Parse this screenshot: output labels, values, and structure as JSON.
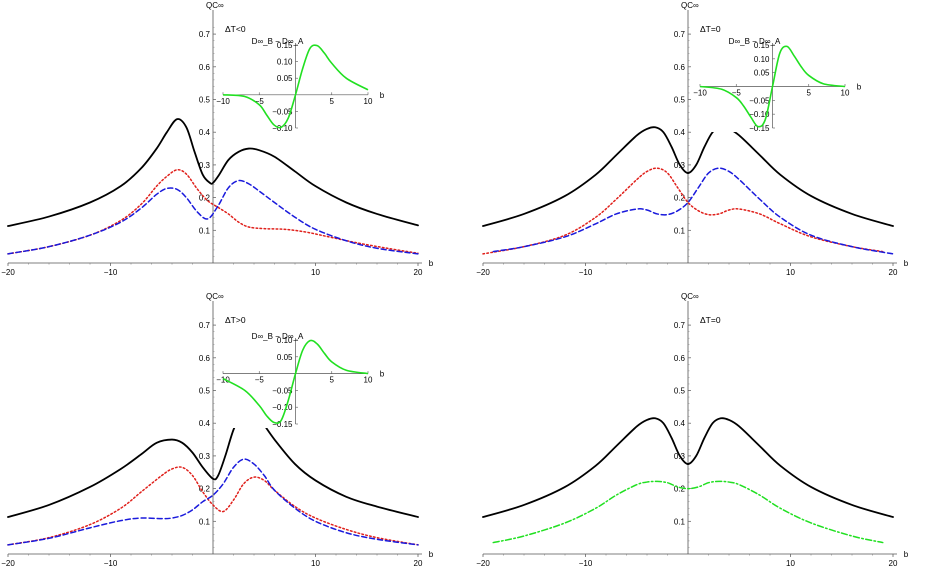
{
  "chart_data": [
    {
      "type": "line",
      "title": "",
      "xlabel": "b",
      "ylabel": "QC∞",
      "annotation": "ΔT<0",
      "xlim": [
        -20,
        20
      ],
      "ylim": [
        0,
        0.75
      ],
      "xticks": [
        -20,
        -10,
        10,
        20
      ],
      "xtick_labels": [
        "−20",
        "−10",
        "10",
        "20"
      ],
      "yticks": [
        0.1,
        0.2,
        0.3,
        0.4,
        0.5,
        0.6,
        0.7
      ],
      "series": [
        {
          "name": "total",
          "style": "solid",
          "color": "#000000",
          "x": [
            -20,
            -16,
            -12,
            -9,
            -7,
            -5.5,
            -4.5,
            -3.5,
            -2.6,
            -1.8,
            -1,
            -0.3,
            0,
            0.6,
            1.5,
            2.5,
            3.5,
            4.5,
            6,
            8,
            10,
            13,
            16,
            20
          ],
          "y": [
            0.113,
            0.142,
            0.185,
            0.235,
            0.29,
            0.35,
            0.4,
            0.44,
            0.415,
            0.34,
            0.27,
            0.245,
            0.245,
            0.27,
            0.315,
            0.34,
            0.35,
            0.345,
            0.325,
            0.28,
            0.235,
            0.185,
            0.15,
            0.115
          ]
        },
        {
          "name": "red",
          "style": "dotted",
          "color": "#e0201b",
          "x": [
            -20,
            -16,
            -12,
            -9,
            -7,
            -5.5,
            -4.5,
            -3.5,
            -2.6,
            -1.5,
            -0.5,
            0.5,
            1.5,
            2.5,
            3.5,
            5,
            7,
            9,
            11,
            14,
            17,
            20
          ],
          "y": [
            0.028,
            0.05,
            0.085,
            0.13,
            0.18,
            0.235,
            0.265,
            0.285,
            0.272,
            0.225,
            0.19,
            0.17,
            0.15,
            0.125,
            0.11,
            0.105,
            0.103,
            0.095,
            0.082,
            0.062,
            0.045,
            0.03
          ]
        },
        {
          "name": "blue",
          "style": "dashed",
          "color": "#1a1adc",
          "x": [
            -20,
            -16,
            -12,
            -9,
            -7,
            -5.5,
            -4.5,
            -3.5,
            -2.6,
            -1.5,
            -0.5,
            0.5,
            1.5,
            2.5,
            3.5,
            4.5,
            6,
            8,
            10,
            13,
            16,
            20
          ],
          "y": [
            0.028,
            0.05,
            0.085,
            0.125,
            0.168,
            0.21,
            0.228,
            0.225,
            0.2,
            0.155,
            0.135,
            0.175,
            0.23,
            0.252,
            0.242,
            0.22,
            0.185,
            0.14,
            0.103,
            0.068,
            0.045,
            0.028
          ]
        }
      ],
      "inset": {
        "label": "D∞_B − D∞_A",
        "xlim": [
          -10,
          10
        ],
        "ylim": [
          -0.1,
          0.15
        ],
        "xticks": [
          -10,
          -5,
          5,
          10
        ],
        "xtick_labels": [
          "−10",
          "−5",
          "5",
          "10"
        ],
        "yticks": [
          -0.1,
          -0.05,
          0.05,
          0.1,
          0.15
        ],
        "ytick_labels": [
          "−0.10",
          "−0.05",
          "0.05",
          "0.10",
          "0.15"
        ],
        "xlabel": "b",
        "x": [
          -10,
          -7,
          -5,
          -4,
          -3,
          -2,
          -1,
          0,
          1,
          2,
          3,
          4,
          5,
          7,
          10
        ],
        "y": [
          0,
          -0.005,
          -0.03,
          -0.06,
          -0.09,
          -0.098,
          -0.07,
          0,
          0.08,
          0.14,
          0.148,
          0.125,
          0.095,
          0.05,
          0.015
        ],
        "color": "#21e021"
      }
    },
    {
      "type": "line",
      "title": "",
      "xlabel": "b",
      "ylabel": "QC∞",
      "annotation": "ΔT=0",
      "xlim": [
        -20,
        20
      ],
      "ylim": [
        0,
        0.75
      ],
      "xticks": [
        -20,
        -10,
        10,
        20
      ],
      "xtick_labels": [
        "−20",
        "−10",
        "10",
        "20"
      ],
      "yticks": [
        0.1,
        0.2,
        0.3,
        0.4,
        0.5,
        0.6,
        0.7
      ],
      "series": [
        {
          "name": "total",
          "style": "solid",
          "color": "#000000",
          "x": [
            -20,
            -16,
            -12,
            -9,
            -7,
            -5,
            -4,
            -3.2,
            -2.4,
            -1.6,
            -0.8,
            0,
            0.8,
            1.6,
            2.4,
            3.2,
            4,
            5,
            7,
            9,
            12,
            16,
            20
          ],
          "y": [
            0.113,
            0.15,
            0.205,
            0.27,
            0.33,
            0.39,
            0.41,
            0.415,
            0.4,
            0.355,
            0.3,
            0.275,
            0.3,
            0.355,
            0.4,
            0.415,
            0.41,
            0.39,
            0.33,
            0.27,
            0.205,
            0.15,
            0.113
          ]
        },
        {
          "name": "red",
          "style": "dotted",
          "color": "#e0201b",
          "x": [
            -20,
            -16,
            -12,
            -9,
            -7,
            -5,
            -4,
            -3,
            -2,
            -1,
            0,
            1,
            2,
            3,
            4,
            5,
            7,
            9,
            12,
            16,
            19
          ],
          "y": [
            0.028,
            0.05,
            0.085,
            0.14,
            0.195,
            0.255,
            0.28,
            0.29,
            0.275,
            0.23,
            0.185,
            0.16,
            0.148,
            0.15,
            0.162,
            0.165,
            0.15,
            0.12,
            0.08,
            0.05,
            0.035
          ]
        },
        {
          "name": "blue",
          "style": "dashed",
          "color": "#1a1adc",
          "x": [
            -19,
            -16,
            -12,
            -9,
            -7,
            -5,
            -4,
            -3,
            -2,
            -1,
            0,
            1,
            2,
            3,
            4,
            5,
            7,
            9,
            12,
            16,
            20
          ],
          "y": [
            0.035,
            0.05,
            0.08,
            0.12,
            0.15,
            0.165,
            0.162,
            0.15,
            0.148,
            0.16,
            0.185,
            0.23,
            0.275,
            0.29,
            0.28,
            0.255,
            0.195,
            0.14,
            0.085,
            0.05,
            0.028
          ]
        }
      ],
      "inset": {
        "label": "D∞_B − D∞_A",
        "xlim": [
          -10,
          10
        ],
        "ylim": [
          -0.15,
          0.15
        ],
        "xticks": [
          -10,
          -5,
          5,
          10
        ],
        "xtick_labels": [
          "−10",
          "−5",
          "5",
          "10"
        ],
        "yticks": [
          -0.15,
          -0.1,
          -0.05,
          0.05,
          0.1,
          0.15
        ],
        "ytick_labels": [
          "−0.15",
          "−0.10",
          "−0.05",
          "0.05",
          "0.10",
          "0.15"
        ],
        "xlabel": "b",
        "x": [
          -10,
          -7,
          -5,
          -4,
          -3,
          -2,
          -1,
          0,
          1,
          2,
          3,
          4,
          5,
          7,
          10
        ],
        "y": [
          0,
          -0.01,
          -0.04,
          -0.07,
          -0.11,
          -0.145,
          -0.12,
          0,
          0.12,
          0.145,
          0.11,
          0.07,
          0.04,
          0.01,
          0
        ],
        "color": "#21e021"
      }
    },
    {
      "type": "line",
      "title": "",
      "xlabel": "b",
      "ylabel": "QC∞",
      "annotation": "ΔT>0",
      "xlim": [
        -20,
        20
      ],
      "ylim": [
        0,
        0.75
      ],
      "xticks": [
        -20,
        -10,
        10,
        20
      ],
      "xtick_labels": [
        "−20",
        "−10",
        "10",
        "20"
      ],
      "yticks": [
        0.1,
        0.2,
        0.3,
        0.4,
        0.5,
        0.6,
        0.7
      ],
      "series": [
        {
          "name": "total",
          "style": "solid",
          "color": "#000000",
          "x": [
            -20,
            -16,
            -12,
            -9,
            -7,
            -5.5,
            -4,
            -3,
            -2,
            -1,
            0,
            0.5,
            1.2,
            2,
            2.8,
            3.5,
            4.5,
            6,
            8,
            10,
            13,
            16,
            20
          ],
          "y": [
            0.113,
            0.15,
            0.205,
            0.26,
            0.305,
            0.34,
            0.35,
            0.34,
            0.31,
            0.265,
            0.23,
            0.24,
            0.3,
            0.38,
            0.43,
            0.44,
            0.415,
            0.35,
            0.275,
            0.225,
            0.175,
            0.145,
            0.113
          ]
        },
        {
          "name": "red",
          "style": "dotted",
          "color": "#e0201b",
          "x": [
            -20,
            -16,
            -12,
            -9,
            -7,
            -5,
            -4,
            -3,
            -2,
            -1,
            0,
            1,
            2,
            3,
            4,
            5,
            6,
            8,
            10,
            13,
            16,
            20
          ],
          "y": [
            0.028,
            0.05,
            0.09,
            0.14,
            0.19,
            0.24,
            0.26,
            0.265,
            0.24,
            0.19,
            0.15,
            0.13,
            0.165,
            0.215,
            0.235,
            0.225,
            0.195,
            0.145,
            0.11,
            0.075,
            0.05,
            0.028
          ]
        },
        {
          "name": "blue",
          "style": "dashed",
          "color": "#1a1adc",
          "x": [
            -20,
            -16,
            -12,
            -9,
            -7,
            -5,
            -4,
            -3,
            -2,
            -1,
            0,
            1,
            2,
            3,
            4,
            5,
            6,
            8,
            10,
            13,
            16,
            20
          ],
          "y": [
            0.028,
            0.048,
            0.08,
            0.102,
            0.11,
            0.108,
            0.11,
            0.118,
            0.135,
            0.16,
            0.18,
            0.215,
            0.265,
            0.29,
            0.275,
            0.24,
            0.195,
            0.14,
            0.1,
            0.065,
            0.045,
            0.028
          ]
        }
      ],
      "inset": {
        "label": "D∞_B − D∞_A",
        "xlim": [
          -10,
          10
        ],
        "ylim": [
          -0.15,
          0.1
        ],
        "xticks": [
          -10,
          -5,
          5,
          10
        ],
        "xtick_labels": [
          "−10",
          "−5",
          "5",
          "10"
        ],
        "yticks": [
          -0.15,
          -0.1,
          -0.05,
          0.05,
          0.1
        ],
        "ytick_labels": [
          "−0.15",
          "−0.10",
          "−0.05",
          "0.05",
          "0.10"
        ],
        "xlabel": "b",
        "x": [
          -10,
          -7,
          -5,
          -4,
          -3,
          -2,
          -1,
          0,
          1,
          2,
          3,
          4,
          5,
          7,
          10
        ],
        "y": [
          -0.015,
          -0.05,
          -0.095,
          -0.125,
          -0.145,
          -0.14,
          -0.08,
          0,
          0.07,
          0.098,
          0.088,
          0.06,
          0.035,
          0.01,
          0
        ],
        "color": "#21e021"
      }
    },
    {
      "type": "line",
      "title": "",
      "xlabel": "b",
      "ylabel": "QC∞",
      "annotation": "ΔT=0",
      "xlim": [
        -20,
        20
      ],
      "ylim": [
        0,
        0.75
      ],
      "xticks": [
        -20,
        -10,
        10,
        20
      ],
      "xtick_labels": [
        "−20",
        "−10",
        "10",
        "20"
      ],
      "yticks": [
        0.1,
        0.2,
        0.3,
        0.4,
        0.5,
        0.6,
        0.7
      ],
      "series": [
        {
          "name": "total",
          "style": "solid",
          "color": "#000000",
          "x": [
            -20,
            -16,
            -12,
            -9,
            -7,
            -5,
            -4,
            -3.2,
            -2.4,
            -1.6,
            -0.8,
            0,
            0.8,
            1.6,
            2.4,
            3.2,
            4,
            5,
            7,
            9,
            12,
            16,
            20
          ],
          "y": [
            0.113,
            0.15,
            0.205,
            0.27,
            0.33,
            0.39,
            0.41,
            0.415,
            0.4,
            0.355,
            0.3,
            0.275,
            0.3,
            0.355,
            0.4,
            0.415,
            0.41,
            0.39,
            0.33,
            0.27,
            0.205,
            0.15,
            0.113
          ]
        },
        {
          "name": "green",
          "style": "dashdot",
          "color": "#21e021",
          "x": [
            -19,
            -16,
            -12,
            -9,
            -7,
            -5,
            -4,
            -3,
            -2,
            -1,
            0,
            1,
            2,
            3,
            4,
            5,
            7,
            9,
            12,
            16,
            19
          ],
          "y": [
            0.035,
            0.055,
            0.095,
            0.14,
            0.18,
            0.212,
            0.22,
            0.222,
            0.218,
            0.205,
            0.2,
            0.205,
            0.218,
            0.222,
            0.22,
            0.212,
            0.18,
            0.14,
            0.095,
            0.055,
            0.035
          ]
        }
      ],
      "inset": null
    }
  ]
}
